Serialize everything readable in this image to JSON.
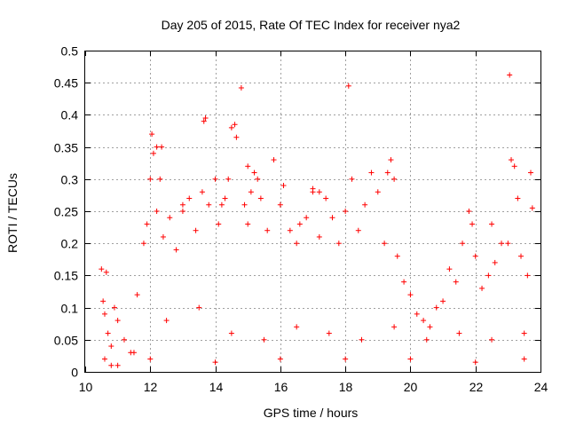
{
  "chart_data": {
    "type": "scatter",
    "title": "Day 205 of 2015, Rate Of TEC Index for receiver nya2",
    "xlabel": "GPS time / hours",
    "ylabel": "ROTI / TECUs",
    "xlim": [
      10,
      24
    ],
    "ylim": [
      0,
      0.5
    ],
    "xticks": [
      10,
      12,
      14,
      16,
      18,
      20,
      22,
      24
    ],
    "xtick_labels": [
      "10",
      "12",
      "14",
      "16",
      "18",
      "20",
      "22",
      "24"
    ],
    "yticks": [
      0,
      0.05,
      0.1,
      0.15,
      0.2,
      0.25,
      0.3,
      0.35,
      0.4,
      0.45,
      0.5
    ],
    "ytick_labels": [
      "0",
      "0.05",
      "0.1",
      "0.15",
      "0.2",
      "0.25",
      "0.3",
      "0.35",
      "0.4",
      "0.45",
      "0.5"
    ],
    "grid": true,
    "marker": "+",
    "color": "#ff0000",
    "series": [
      {
        "points": [
          [
            10.5,
            0.16
          ],
          [
            10.65,
            0.155
          ],
          [
            10.55,
            0.11
          ],
          [
            10.6,
            0.09
          ],
          [
            10.7,
            0.06
          ],
          [
            10.8,
            0.04
          ],
          [
            10.9,
            0.1
          ],
          [
            11.0,
            0.08
          ],
          [
            11.2,
            0.05
          ],
          [
            11.4,
            0.03
          ],
          [
            11.6,
            0.12
          ],
          [
            11.8,
            0.2
          ],
          [
            11.9,
            0.23
          ],
          [
            12.0,
            0.3
          ],
          [
            12.05,
            0.37
          ],
          [
            12.1,
            0.34
          ],
          [
            12.2,
            0.25
          ],
          [
            12.3,
            0.3
          ],
          [
            12.35,
            0.35
          ],
          [
            12.4,
            0.21
          ],
          [
            12.6,
            0.24
          ],
          [
            12.8,
            0.19
          ],
          [
            13.0,
            0.26
          ],
          [
            13.2,
            0.27
          ],
          [
            13.4,
            0.22
          ],
          [
            13.6,
            0.28
          ],
          [
            13.65,
            0.39
          ],
          [
            13.7,
            0.395
          ],
          [
            13.8,
            0.26
          ],
          [
            14.0,
            0.3
          ],
          [
            14.1,
            0.23
          ],
          [
            14.2,
            0.26
          ],
          [
            14.4,
            0.3
          ],
          [
            14.5,
            0.38
          ],
          [
            14.6,
            0.385
          ],
          [
            14.65,
            0.365
          ],
          [
            14.8,
            0.442
          ],
          [
            14.9,
            0.26
          ],
          [
            15.0,
            0.23
          ],
          [
            15.1,
            0.28
          ],
          [
            15.2,
            0.31
          ],
          [
            15.4,
            0.27
          ],
          [
            15.6,
            0.22
          ],
          [
            15.8,
            0.33
          ],
          [
            16.0,
            0.26
          ],
          [
            16.1,
            0.29
          ],
          [
            16.3,
            0.22
          ],
          [
            16.5,
            0.2
          ],
          [
            16.8,
            0.24
          ],
          [
            17.0,
            0.285
          ],
          [
            17.2,
            0.21
          ],
          [
            17.4,
            0.27
          ],
          [
            17.6,
            0.24
          ],
          [
            17.8,
            0.2
          ],
          [
            18.0,
            0.25
          ],
          [
            18.1,
            0.445
          ],
          [
            18.2,
            0.3
          ],
          [
            18.4,
            0.22
          ],
          [
            18.6,
            0.26
          ],
          [
            18.8,
            0.31
          ],
          [
            19.0,
            0.28
          ],
          [
            19.2,
            0.2
          ],
          [
            19.4,
            0.33
          ],
          [
            19.5,
            0.3
          ],
          [
            19.6,
            0.18
          ],
          [
            19.8,
            0.14
          ],
          [
            20.0,
            0.12
          ],
          [
            20.2,
            0.09
          ],
          [
            20.4,
            0.08
          ],
          [
            20.6,
            0.07
          ],
          [
            20.8,
            0.1
          ],
          [
            21.0,
            0.11
          ],
          [
            21.2,
            0.16
          ],
          [
            21.4,
            0.14
          ],
          [
            21.6,
            0.2
          ],
          [
            21.8,
            0.25
          ],
          [
            21.9,
            0.23
          ],
          [
            22.0,
            0.18
          ],
          [
            22.2,
            0.13
          ],
          [
            22.4,
            0.15
          ],
          [
            22.5,
            0.23
          ],
          [
            22.6,
            0.17
          ],
          [
            22.8,
            0.2
          ],
          [
            23.0,
            0.2
          ],
          [
            23.05,
            0.462
          ],
          [
            23.1,
            0.33
          ],
          [
            23.2,
            0.32
          ],
          [
            23.3,
            0.27
          ],
          [
            23.4,
            0.18
          ],
          [
            23.6,
            0.15
          ],
          [
            23.7,
            0.31
          ],
          [
            23.75,
            0.255
          ],
          [
            10.6,
            0.02
          ],
          [
            11.0,
            0.01
          ],
          [
            12.0,
            0.02
          ],
          [
            14.0,
            0.015
          ],
          [
            16.0,
            0.02
          ],
          [
            18.0,
            0.02
          ],
          [
            20.0,
            0.02
          ],
          [
            22.0,
            0.015
          ],
          [
            23.5,
            0.02
          ],
          [
            12.5,
            0.08
          ],
          [
            13.5,
            0.1
          ],
          [
            14.5,
            0.06
          ],
          [
            15.5,
            0.05
          ],
          [
            16.5,
            0.07
          ],
          [
            17.5,
            0.06
          ],
          [
            18.5,
            0.05
          ],
          [
            19.5,
            0.07
          ],
          [
            20.5,
            0.05
          ],
          [
            21.5,
            0.06
          ],
          [
            22.5,
            0.05
          ],
          [
            23.5,
            0.06
          ],
          [
            17.2,
            0.28
          ],
          [
            17.0,
            0.28
          ],
          [
            16.6,
            0.23
          ],
          [
            15.0,
            0.32
          ],
          [
            15.3,
            0.3
          ],
          [
            14.3,
            0.27
          ],
          [
            12.2,
            0.35
          ],
          [
            13.0,
            0.25
          ],
          [
            11.5,
            0.03
          ],
          [
            10.8,
            0.01
          ],
          [
            19.3,
            0.31
          ]
        ]
      }
    ]
  }
}
